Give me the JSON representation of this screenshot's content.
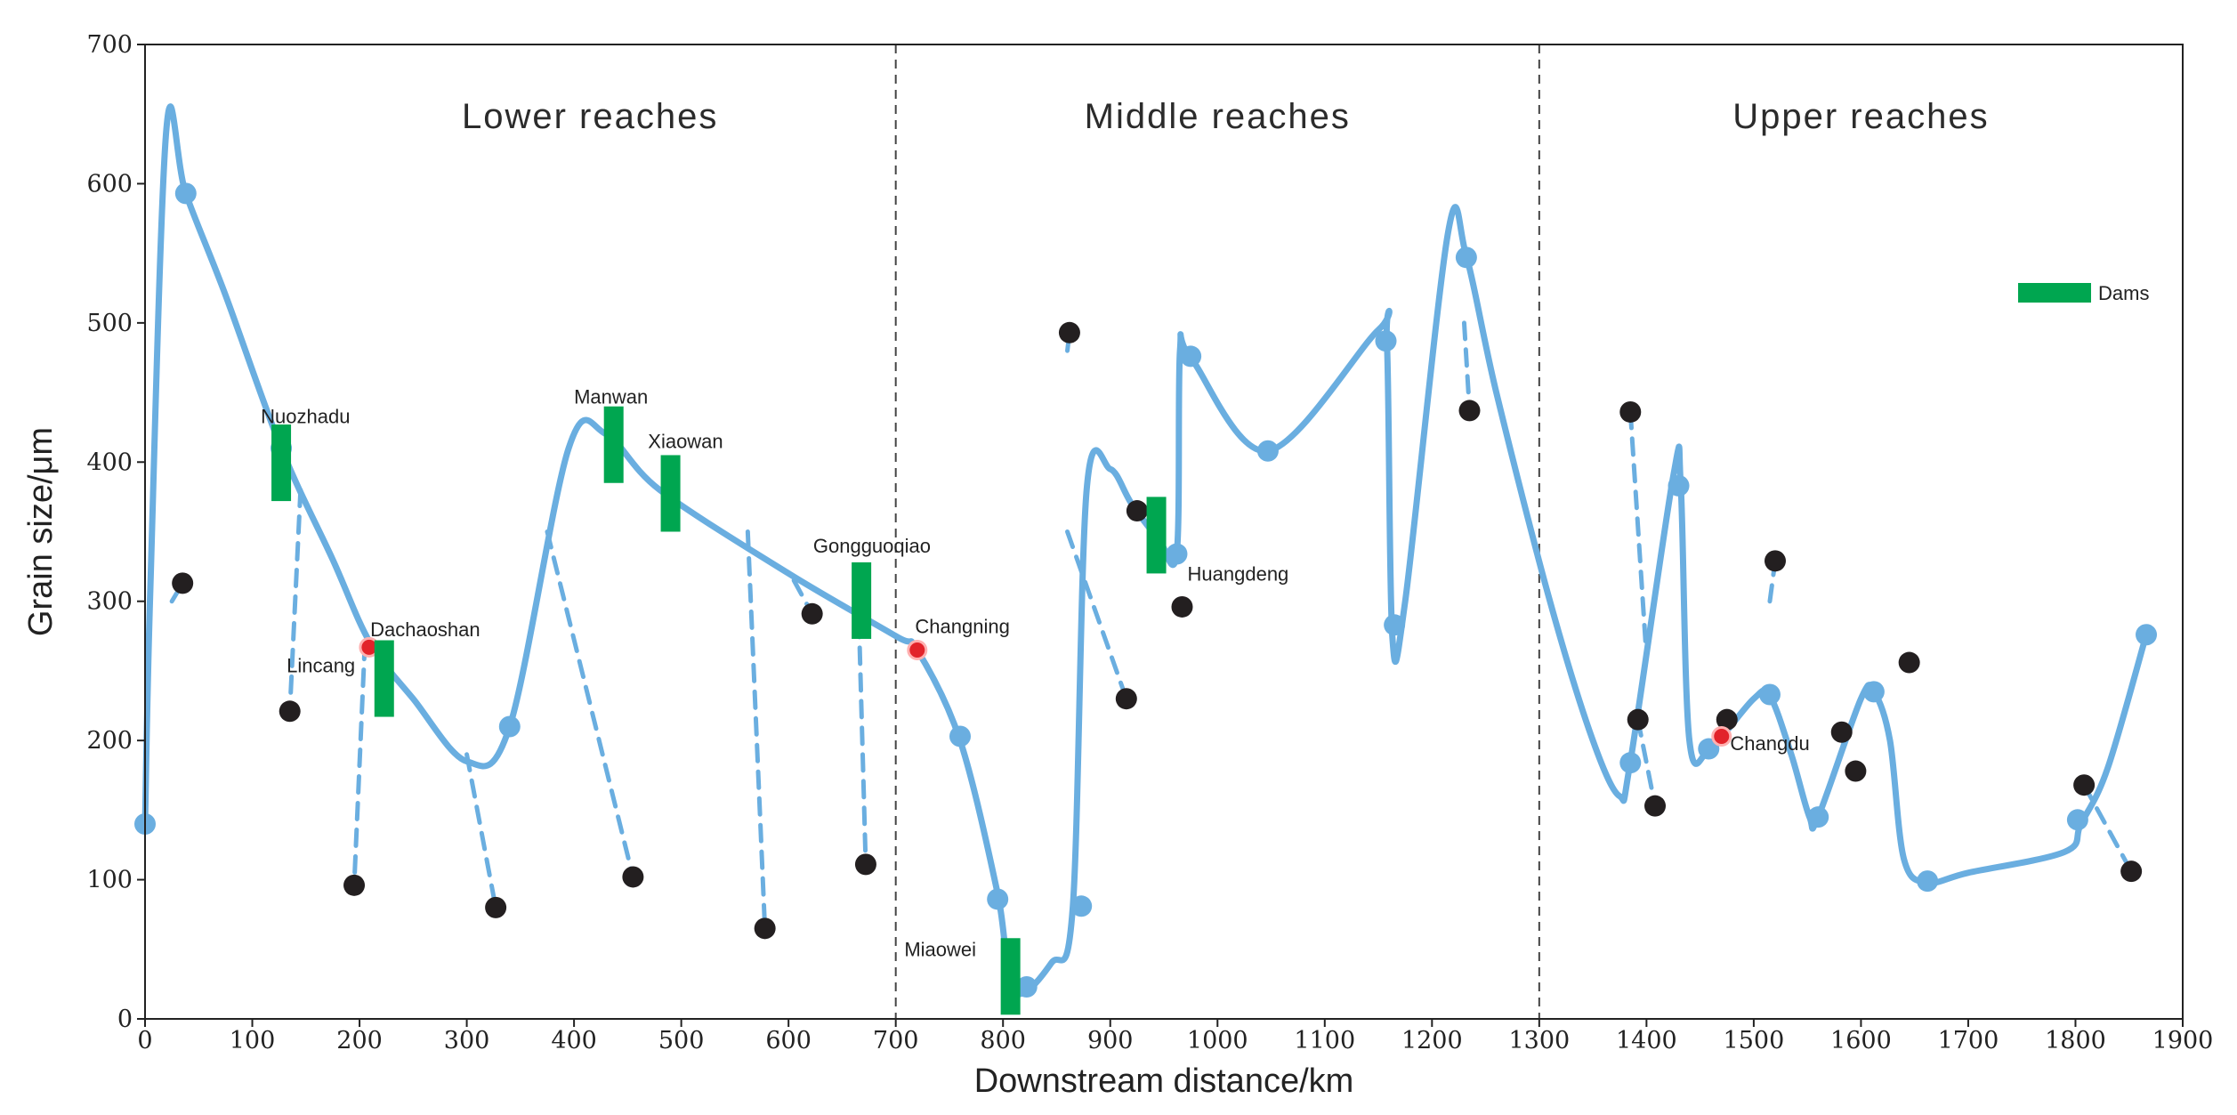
{
  "chart_data": {
    "type": "scatter",
    "title": "",
    "xlabel": "Downstream distance/km",
    "ylabel": "Grain size/μm",
    "xlim": [
      0,
      1900
    ],
    "ylim": [
      0,
      700
    ],
    "xticks": [
      0,
      100,
      200,
      300,
      400,
      500,
      600,
      700,
      800,
      900,
      1000,
      1100,
      1200,
      1300,
      1400,
      1500,
      1600,
      1700,
      1800,
      1900
    ],
    "yticks": [
      0,
      100,
      200,
      300,
      400,
      500,
      600,
      700
    ],
    "region_dividers": [
      700,
      1300
    ],
    "regions": [
      {
        "label": "Lower reaches",
        "x": 415,
        "y": 640
      },
      {
        "label": "Middle reaches",
        "x": 1000,
        "y": 640
      },
      {
        "label": "Upper reaches",
        "x": 1600,
        "y": 640
      }
    ],
    "legend": {
      "label": "Dams",
      "color": "#00a650",
      "position": "top-right"
    },
    "colors": {
      "trend": "#6aaee0",
      "sample": "#231f20",
      "site": "#e2232a",
      "dam": "#00a650",
      "divider": "#444444"
    },
    "trend_curve": [
      [
        0,
        140
      ],
      [
        5,
        310
      ],
      [
        20,
        640
      ],
      [
        38,
        593
      ],
      [
        75,
        520
      ],
      [
        127,
        410
      ],
      [
        175,
        330
      ],
      [
        210,
        270
      ],
      [
        250,
        230
      ],
      [
        300,
        185
      ],
      [
        340,
        210
      ],
      [
        395,
        410
      ],
      [
        430,
        420
      ],
      [
        480,
        380
      ],
      [
        600,
        320
      ],
      [
        700,
        275
      ],
      [
        720,
        265
      ],
      [
        760,
        200
      ],
      [
        795,
        90
      ],
      [
        810,
        20
      ],
      [
        845,
        40
      ],
      [
        865,
        80
      ],
      [
        878,
        380
      ],
      [
        900,
        395
      ],
      [
        920,
        370
      ],
      [
        945,
        345
      ],
      [
        962,
        335
      ],
      [
        965,
        480
      ],
      [
        975,
        475
      ],
      [
        1047,
        408
      ],
      [
        1150,
        495
      ],
      [
        1158,
        485
      ],
      [
        1163,
        275
      ],
      [
        1175,
        300
      ],
      [
        1215,
        565
      ],
      [
        1232,
        548
      ],
      [
        1260,
        450
      ],
      [
        1310,
        300
      ],
      [
        1350,
        200
      ],
      [
        1375,
        160
      ],
      [
        1385,
        185
      ],
      [
        1425,
        390
      ],
      [
        1432,
        383
      ],
      [
        1440,
        200
      ],
      [
        1460,
        195
      ],
      [
        1500,
        230
      ],
      [
        1515,
        232
      ],
      [
        1535,
        190
      ],
      [
        1552,
        145
      ],
      [
        1560,
        145
      ],
      [
        1600,
        230
      ],
      [
        1612,
        235
      ],
      [
        1627,
        200
      ],
      [
        1640,
        115
      ],
      [
        1662,
        98
      ],
      [
        1700,
        105
      ],
      [
        1790,
        120
      ],
      [
        1805,
        140
      ],
      [
        1830,
        180
      ],
      [
        1866,
        276
      ]
    ],
    "trend_points": [
      {
        "x": 0,
        "y": 140
      },
      {
        "x": 38,
        "y": 593
      },
      {
        "x": 127,
        "y": 410
      },
      {
        "x": 340,
        "y": 210
      },
      {
        "x": 760,
        "y": 203
      },
      {
        "x": 795,
        "y": 86
      },
      {
        "x": 822,
        "y": 23
      },
      {
        "x": 873,
        "y": 81
      },
      {
        "x": 962,
        "y": 334
      },
      {
        "x": 975,
        "y": 476
      },
      {
        "x": 1047,
        "y": 408
      },
      {
        "x": 1157,
        "y": 487
      },
      {
        "x": 1165,
        "y": 283
      },
      {
        "x": 1232,
        "y": 547
      },
      {
        "x": 1385,
        "y": 184
      },
      {
        "x": 1430,
        "y": 383
      },
      {
        "x": 1458,
        "y": 194
      },
      {
        "x": 1515,
        "y": 233
      },
      {
        "x": 1560,
        "y": 145
      },
      {
        "x": 1612,
        "y": 235
      },
      {
        "x": 1662,
        "y": 99
      },
      {
        "x": 1802,
        "y": 143
      },
      {
        "x": 1866,
        "y": 276
      }
    ],
    "sample_points": [
      {
        "x": 35,
        "y": 313
      },
      {
        "x": 135,
        "y": 221
      },
      {
        "x": 195,
        "y": 96
      },
      {
        "x": 327,
        "y": 80
      },
      {
        "x": 455,
        "y": 102
      },
      {
        "x": 578,
        "y": 65
      },
      {
        "x": 622,
        "y": 291
      },
      {
        "x": 672,
        "y": 111
      },
      {
        "x": 862,
        "y": 493
      },
      {
        "x": 915,
        "y": 230
      },
      {
        "x": 925,
        "y": 365
      },
      {
        "x": 967,
        "y": 296
      },
      {
        "x": 1235,
        "y": 437
      },
      {
        "x": 1385,
        "y": 436
      },
      {
        "x": 1392,
        "y": 215
      },
      {
        "x": 1408,
        "y": 153
      },
      {
        "x": 1475,
        "y": 215
      },
      {
        "x": 1520,
        "y": 329
      },
      {
        "x": 1582,
        "y": 206
      },
      {
        "x": 1595,
        "y": 178
      },
      {
        "x": 1645,
        "y": 256
      },
      {
        "x": 1808,
        "y": 168
      },
      {
        "x": 1852,
        "y": 106
      }
    ],
    "connectors": [
      [
        [
          25,
          300
        ],
        [
          35,
          313
        ]
      ],
      [
        [
          145,
          380
        ],
        [
          135,
          221
        ]
      ],
      [
        [
          205,
          270
        ],
        [
          195,
          96
        ]
      ],
      [
        [
          300,
          190
        ],
        [
          327,
          80
        ]
      ],
      [
        [
          375,
          350
        ],
        [
          455,
          102
        ]
      ],
      [
        [
          562,
          350
        ],
        [
          578,
          65
        ]
      ],
      [
        [
          605,
          315
        ],
        [
          622,
          291
        ]
      ],
      [
        [
          665,
          305
        ],
        [
          672,
          111
        ]
      ],
      [
        [
          860,
          480
        ],
        [
          862,
          493
        ]
      ],
      [
        [
          860,
          350
        ],
        [
          915,
          230
        ]
      ],
      [
        [
          1230,
          500
        ],
        [
          1235,
          437
        ]
      ],
      [
        [
          1385,
          436
        ],
        [
          1400,
          260
        ]
      ],
      [
        [
          1392,
          215
        ],
        [
          1408,
          153
        ]
      ],
      [
        [
          1515,
          300
        ],
        [
          1520,
          329
        ]
      ],
      [
        [
          1808,
          168
        ],
        [
          1852,
          106
        ]
      ]
    ],
    "dams": [
      {
        "name": "Nuozhadu",
        "x": 127,
        "y_bottom": 372,
        "y_top": 427
      },
      {
        "name": "Dachaoshan",
        "x": 223,
        "y_bottom": 217,
        "y_top": 272
      },
      {
        "name": "Manwan",
        "x": 437,
        "y_bottom": 385,
        "y_top": 440
      },
      {
        "name": "Xiaowan",
        "x": 490,
        "y_bottom": 350,
        "y_top": 405
      },
      {
        "name": "Gongguoqiao",
        "x": 668,
        "y_bottom": 273,
        "y_top": 328
      },
      {
        "name": "Miaowei",
        "x": 807,
        "y_bottom": 3,
        "y_top": 58
      },
      {
        "name": "Huangdeng",
        "x": 943,
        "y_bottom": 320,
        "y_top": 375
      }
    ],
    "site_points": [
      {
        "name": "Lincang",
        "x": 209,
        "y": 267
      },
      {
        "name": "Changning",
        "x": 720,
        "y": 265
      },
      {
        "name": "Changdu",
        "x": 1470,
        "y": 203
      }
    ],
    "labels": [
      {
        "text": "Nuozhadu",
        "x": 108,
        "y": 428
      },
      {
        "text": "Dachaoshan",
        "x": 210,
        "y": 275
      },
      {
        "text": "Lincang",
        "x": 132,
        "y": 249
      },
      {
        "text": "Manwan",
        "x": 400,
        "y": 442
      },
      {
        "text": "Xiaowan",
        "x": 469,
        "y": 410
      },
      {
        "text": "Gongguoqiao",
        "x": 623,
        "y": 335
      },
      {
        "text": "Changning",
        "x": 718,
        "y": 277
      },
      {
        "text": "Miaowei",
        "x": 708,
        "y": 45
      },
      {
        "text": "Huangdeng",
        "x": 972,
        "y": 315
      },
      {
        "text": "Changdu",
        "x": 1478,
        "y": 193
      }
    ]
  }
}
